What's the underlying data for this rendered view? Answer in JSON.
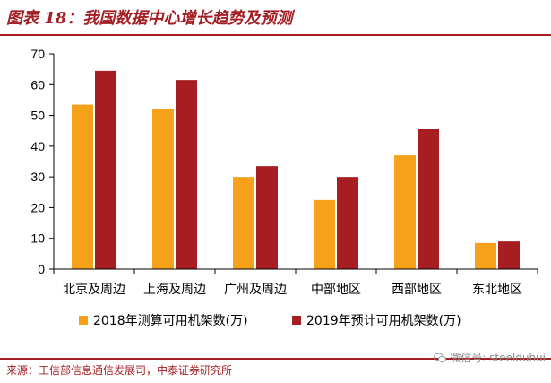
{
  "header": {
    "title": "图表 18：我国数据中心增长趋势及预测"
  },
  "footer": {
    "source": "来源：工信部信息通信发展司，中泰证券研究所"
  },
  "watermark": {
    "text": "微信号: steelduhui",
    "icon": "wechat-icon"
  },
  "colors": {
    "series_2018": "#f7a11a",
    "series_2019": "#a61e22",
    "accent": "#a31f24"
  },
  "chart_data": {
    "type": "bar",
    "title": "",
    "xlabel": "",
    "ylabel": "",
    "ylim": [
      0,
      70
    ],
    "yticks": [
      0,
      10,
      20,
      30,
      40,
      50,
      60,
      70
    ],
    "grid": false,
    "legend_position": "bottom",
    "categories": [
      "北京及周边",
      "上海及周边",
      "广州及周边",
      "中部地区",
      "西部地区",
      "东北地区"
    ],
    "series": [
      {
        "name": "2018年测算可用机架数(万)",
        "values": [
          53.5,
          52,
          30,
          22.5,
          37,
          8.5
        ]
      },
      {
        "name": "2019年预计可用机架数(万)",
        "values": [
          64.5,
          61.5,
          33.5,
          30,
          45.5,
          9
        ]
      }
    ]
  }
}
